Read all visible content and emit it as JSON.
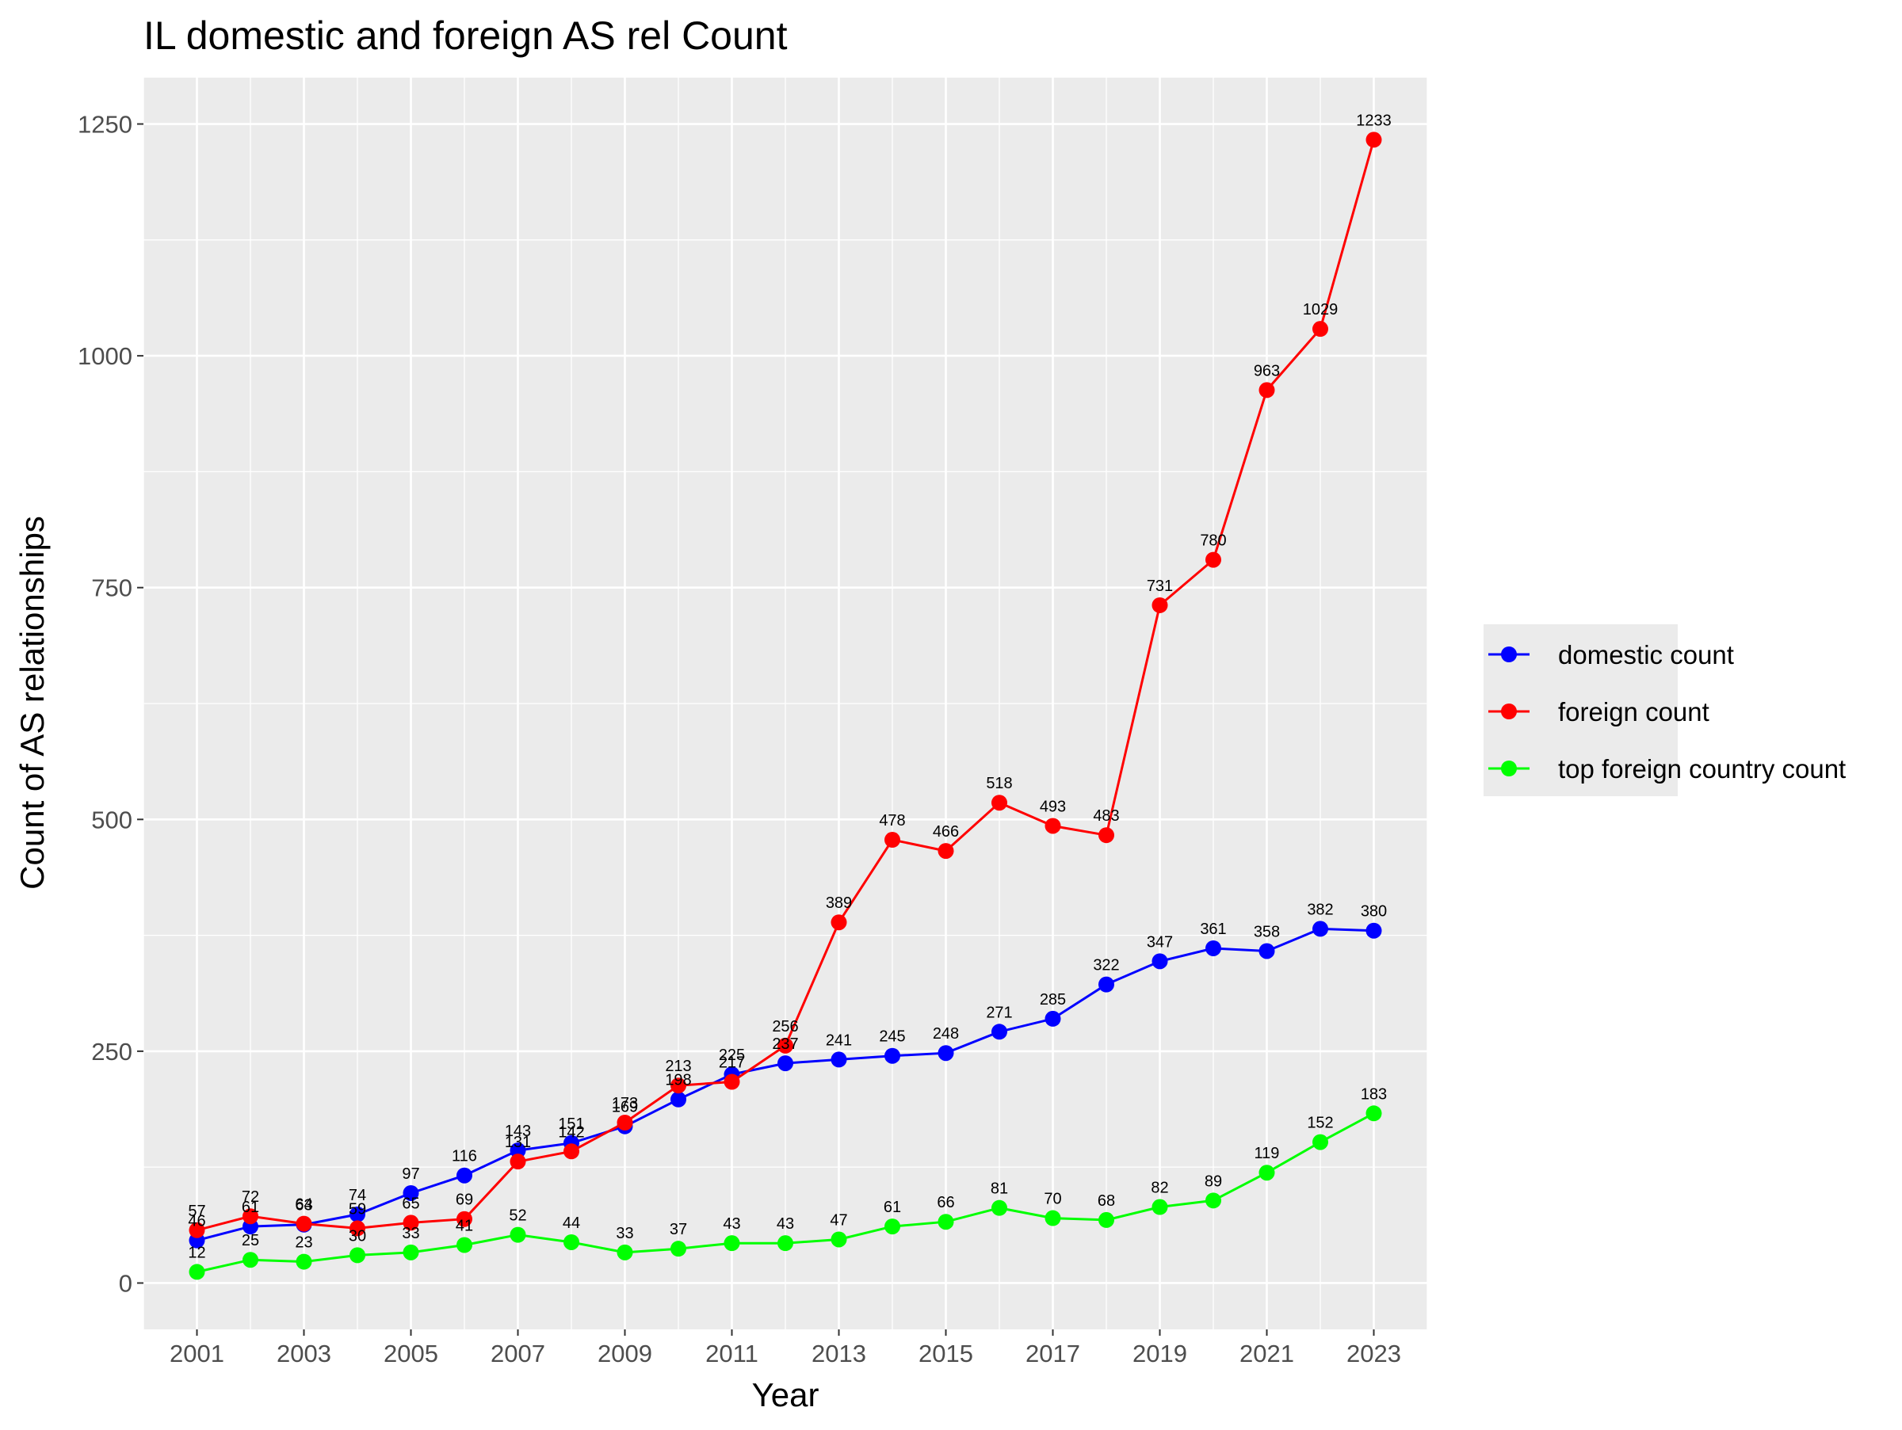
{
  "chart_data": {
    "type": "line",
    "title": "IL domestic and foreign AS rel Count",
    "xlabel": "Year",
    "ylabel": "Count of AS relationships",
    "x": [
      2001,
      2002,
      2003,
      2004,
      2005,
      2006,
      2007,
      2008,
      2009,
      2010,
      2011,
      2012,
      2013,
      2014,
      2015,
      2016,
      2017,
      2018,
      2019,
      2020,
      2021,
      2022,
      2023
    ],
    "x_ticks": [
      2001,
      2003,
      2005,
      2007,
      2009,
      2011,
      2013,
      2015,
      2017,
      2019,
      2021,
      2023
    ],
    "y_ticks": [
      0,
      250,
      500,
      750,
      1000,
      1250
    ],
    "xlim": [
      2000,
      2024
    ],
    "ylim": [
      -50,
      1300
    ],
    "grid": true,
    "legend_position": "right",
    "series": [
      {
        "name": "domestic count",
        "color": "#0000ff",
        "values": [
          46,
          61,
          63,
          74,
          97,
          116,
          143,
          151,
          169,
          198,
          225,
          237,
          241,
          245,
          248,
          271,
          285,
          322,
          347,
          361,
          358,
          382,
          380
        ]
      },
      {
        "name": "foreign count",
        "color": "#ff0000",
        "values": [
          57,
          72,
          64,
          59,
          65,
          69,
          131,
          142,
          173,
          213,
          217,
          256,
          389,
          478,
          466,
          518,
          493,
          483,
          731,
          780,
          963,
          1029,
          1233
        ]
      },
      {
        "name": "top foreign country count",
        "color": "#00ff00",
        "values": [
          12,
          25,
          23,
          30,
          33,
          41,
          52,
          44,
          33,
          37,
          43,
          43,
          47,
          61,
          66,
          81,
          70,
          68,
          82,
          89,
          119,
          152,
          183
        ]
      }
    ]
  }
}
